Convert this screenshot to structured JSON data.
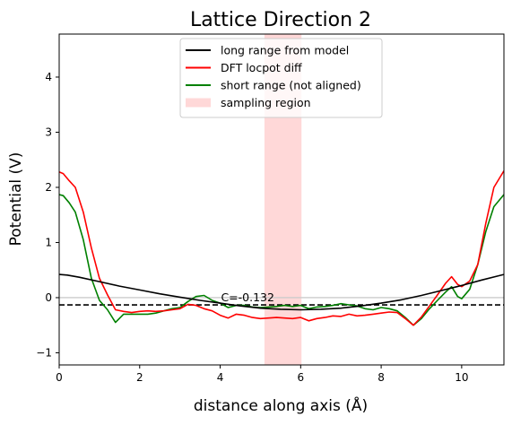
{
  "chart_data": {
    "type": "line",
    "title": "Lattice Direction 2",
    "xlabel": "distance along axis (Å)",
    "ylabel": "Potential (V)",
    "xlim": [
      0,
      11.05
    ],
    "ylim": [
      -1.22,
      4.78
    ],
    "xticks": [
      0,
      2,
      4,
      6,
      8,
      10
    ],
    "yticks": [
      -1,
      0,
      1,
      2,
      3,
      4
    ],
    "grid": false,
    "legend_position": "top-center",
    "sampling_region": {
      "x_start": 5.1,
      "x_end": 6.02,
      "label": "sampling region",
      "color": "#ffd8d8"
    },
    "reference_lines": [
      {
        "y": 0,
        "style": "solid",
        "color": "#cccccc"
      },
      {
        "y": -0.132,
        "style": "dashed",
        "color": "#000000"
      }
    ],
    "annotations": [
      {
        "text": "C=-0.132",
        "x": 4.02,
        "y": -0.132
      }
    ],
    "series": [
      {
        "name": "long range from model",
        "color": "#000000",
        "x": [
          0,
          0.2,
          0.5,
          1.0,
          1.5,
          2.0,
          2.5,
          3.0,
          3.5,
          4.0,
          4.5,
          5.0,
          5.5,
          6.0,
          6.5,
          7.0,
          7.5,
          8.0,
          8.5,
          9.0,
          9.5,
          10.0,
          10.5,
          11.05
        ],
        "y": [
          0.42,
          0.41,
          0.37,
          0.29,
          0.21,
          0.14,
          0.07,
          0.01,
          -0.05,
          -0.1,
          -0.15,
          -0.19,
          -0.21,
          -0.22,
          -0.21,
          -0.19,
          -0.15,
          -0.1,
          -0.04,
          0.04,
          0.13,
          0.22,
          0.32,
          0.42
        ]
      },
      {
        "name": "DFT locpot diff",
        "color": "#ff0000",
        "x": [
          0,
          0.1,
          0.25,
          0.4,
          0.6,
          0.8,
          1.0,
          1.2,
          1.4,
          1.6,
          1.8,
          2.0,
          2.2,
          2.4,
          2.6,
          2.8,
          3.0,
          3.2,
          3.4,
          3.6,
          3.8,
          4.0,
          4.2,
          4.4,
          4.6,
          4.8,
          5.0,
          5.2,
          5.4,
          5.6,
          5.8,
          6.0,
          6.2,
          6.4,
          6.6,
          6.8,
          7.0,
          7.2,
          7.4,
          7.6,
          7.8,
          8.0,
          8.2,
          8.4,
          8.6,
          8.8,
          9.0,
          9.2,
          9.4,
          9.6,
          9.75,
          9.9,
          10.0,
          10.2,
          10.4,
          10.6,
          10.8,
          11.05
        ],
        "y": [
          2.28,
          2.25,
          2.12,
          2.0,
          1.55,
          0.9,
          0.35,
          0.05,
          -0.22,
          -0.25,
          -0.27,
          -0.25,
          -0.24,
          -0.25,
          -0.24,
          -0.22,
          -0.2,
          -0.12,
          -0.14,
          -0.2,
          -0.24,
          -0.32,
          -0.37,
          -0.3,
          -0.32,
          -0.36,
          -0.38,
          -0.37,
          -0.36,
          -0.37,
          -0.38,
          -0.36,
          -0.42,
          -0.38,
          -0.36,
          -0.33,
          -0.34,
          -0.3,
          -0.33,
          -0.32,
          -0.3,
          -0.28,
          -0.26,
          -0.27,
          -0.38,
          -0.5,
          -0.35,
          -0.15,
          0.05,
          0.26,
          0.38,
          0.24,
          0.2,
          0.3,
          0.6,
          1.35,
          2.0,
          2.3
        ]
      },
      {
        "name": "short range (not aligned)",
        "color": "#008000",
        "x": [
          0,
          0.1,
          0.25,
          0.4,
          0.6,
          0.8,
          1.0,
          1.2,
          1.4,
          1.6,
          1.8,
          2.0,
          2.2,
          2.4,
          2.6,
          2.8,
          3.0,
          3.2,
          3.4,
          3.6,
          3.8,
          4.0,
          4.2,
          4.4,
          4.6,
          4.8,
          5.0,
          5.2,
          5.4,
          5.6,
          5.8,
          6.0,
          6.2,
          6.4,
          6.6,
          6.8,
          7.0,
          7.2,
          7.4,
          7.6,
          7.8,
          8.0,
          8.2,
          8.4,
          8.6,
          8.8,
          9.0,
          9.2,
          9.4,
          9.6,
          9.75,
          9.9,
          10.0,
          10.2,
          10.4,
          10.6,
          10.8,
          11.05
        ],
        "y": [
          1.87,
          1.85,
          1.72,
          1.55,
          1.05,
          0.35,
          -0.05,
          -0.22,
          -0.45,
          -0.3,
          -0.3,
          -0.3,
          -0.3,
          -0.28,
          -0.24,
          -0.2,
          -0.18,
          -0.07,
          0.02,
          0.04,
          -0.05,
          -0.1,
          -0.18,
          -0.14,
          -0.14,
          -0.17,
          -0.18,
          -0.17,
          -0.16,
          -0.14,
          -0.16,
          -0.14,
          -0.2,
          -0.17,
          -0.16,
          -0.14,
          -0.11,
          -0.13,
          -0.15,
          -0.2,
          -0.22,
          -0.18,
          -0.2,
          -0.24,
          -0.36,
          -0.5,
          -0.38,
          -0.2,
          -0.05,
          0.1,
          0.2,
          0.02,
          -0.02,
          0.15,
          0.6,
          1.2,
          1.65,
          1.87
        ]
      }
    ]
  }
}
